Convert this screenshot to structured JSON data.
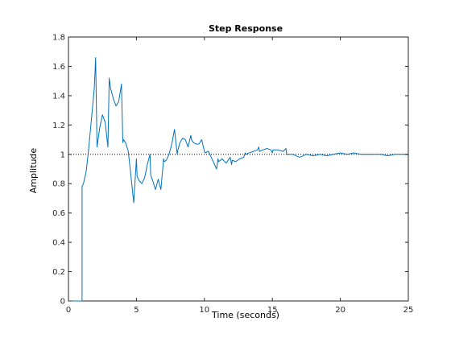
{
  "chart_data": {
    "type": "line",
    "title": "Step Response",
    "xlabel": "Time (seconds)",
    "ylabel": "Amplitude",
    "xlim": [
      0,
      25
    ],
    "ylim": [
      0,
      1.8
    ],
    "x_ticks": [
      0,
      5,
      10,
      15,
      20,
      25
    ],
    "x_tick_labels": [
      "0",
      "5",
      "10",
      "15",
      "20",
      "25"
    ],
    "y_ticks": [
      0,
      0.2,
      0.4,
      0.6,
      0.8,
      1,
      1.2,
      1.4,
      1.6,
      1.8
    ],
    "y_tick_labels": [
      "0",
      "0.2",
      "0.4",
      "0.6",
      "0.8",
      "1",
      "1.2",
      "1.4",
      "1.6",
      "1.8"
    ],
    "grid": false,
    "reference_line": {
      "y": 1,
      "style": "dotted",
      "color": "#000000"
    },
    "series": [
      {
        "color": "#0072BD",
        "x": [
          0,
          1,
          1,
          1.1,
          1.3,
          1.5,
          1.7,
          1.9,
          2.0,
          2.1,
          2.3,
          2.5,
          2.7,
          2.9,
          3.0,
          3.1,
          3.3,
          3.5,
          3.7,
          3.9,
          4.0,
          4.05,
          4.2,
          4.4,
          4.6,
          4.8,
          5.0,
          5.05,
          5.2,
          5.4,
          5.6,
          5.8,
          6.0,
          6.05,
          6.2,
          6.4,
          6.6,
          6.8,
          7.0,
          7.05,
          7.2,
          7.4,
          7.6,
          7.8,
          8.0,
          8.05,
          8.2,
          8.4,
          8.6,
          8.8,
          9.0,
          9.05,
          9.2,
          9.4,
          9.6,
          9.8,
          10.0,
          10.05,
          10.3,
          10.6,
          10.9,
          11.0,
          11.05,
          11.3,
          11.6,
          11.9,
          12.0,
          12.05,
          12.3,
          12.6,
          12.9,
          13.0,
          13.05,
          13.3,
          13.6,
          13.9,
          14.0,
          14.05,
          14.3,
          14.6,
          14.9,
          15.0,
          15.05,
          15.4,
          15.8,
          16.0,
          16.05,
          16.5,
          17.0,
          17.5,
          18.0,
          18.5,
          19.0,
          19.5,
          20.0,
          20.5,
          21.0,
          21.5,
          22.0,
          22.5,
          23.0,
          23.5,
          24.0,
          24.5,
          25.0
        ],
        "y": [
          0,
          0,
          0.78,
          0.8,
          0.88,
          1.05,
          1.25,
          1.45,
          1.66,
          1.05,
          1.18,
          1.27,
          1.22,
          1.05,
          1.52,
          1.45,
          1.38,
          1.33,
          1.36,
          1.48,
          1.08,
          1.1,
          1.08,
          1.02,
          0.85,
          0.67,
          0.97,
          0.85,
          0.82,
          0.8,
          0.84,
          0.93,
          1.0,
          0.86,
          0.82,
          0.76,
          0.83,
          0.76,
          0.97,
          0.95,
          0.96,
          1.0,
          1.07,
          1.17,
          1.0,
          1.03,
          1.08,
          1.11,
          1.1,
          1.05,
          1.13,
          1.1,
          1.08,
          1.07,
          1.07,
          1.1,
          1.02,
          1.01,
          1.02,
          0.96,
          0.9,
          0.97,
          0.95,
          0.97,
          0.94,
          0.98,
          0.93,
          0.96,
          0.95,
          0.97,
          0.98,
          1.01,
          1.0,
          1.01,
          1.02,
          1.03,
          1.05,
          1.02,
          1.03,
          1.04,
          1.03,
          1.01,
          1.03,
          1.03,
          1.02,
          1.04,
          1.0,
          1.0,
          0.98,
          1.0,
          0.99,
          1.0,
          0.99,
          1.0,
          1.01,
          1.0,
          1.01,
          1.0,
          1.0,
          1.0,
          1.0,
          0.99,
          1.0,
          1.0,
          1.0
        ]
      }
    ]
  }
}
